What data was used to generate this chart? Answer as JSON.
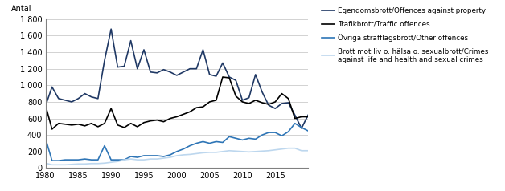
{
  "years": [
    1980,
    1981,
    1982,
    1983,
    1984,
    1985,
    1986,
    1987,
    1988,
    1989,
    1990,
    1991,
    1992,
    1993,
    1994,
    1995,
    1996,
    1997,
    1998,
    1999,
    2000,
    2001,
    2002,
    2003,
    2004,
    2005,
    2006,
    2007,
    2008,
    2009,
    2010,
    2011,
    2012,
    2013,
    2014,
    2015,
    2016,
    2017,
    2018,
    2019,
    2020
  ],
  "egendom": [
    750,
    980,
    840,
    820,
    800,
    840,
    900,
    860,
    840,
    1300,
    1680,
    1220,
    1230,
    1540,
    1200,
    1430,
    1160,
    1150,
    1190,
    1160,
    1120,
    1160,
    1200,
    1200,
    1430,
    1130,
    1110,
    1270,
    1100,
    1060,
    820,
    850,
    1130,
    920,
    760,
    720,
    780,
    790,
    640,
    480,
    640
  ],
  "trafik": [
    760,
    470,
    540,
    530,
    520,
    530,
    510,
    540,
    500,
    540,
    720,
    520,
    490,
    540,
    500,
    550,
    570,
    580,
    560,
    600,
    620,
    650,
    680,
    730,
    740,
    800,
    820,
    1100,
    1090,
    870,
    800,
    780,
    820,
    790,
    770,
    800,
    900,
    840,
    600,
    620,
    620
  ],
  "ovriga": [
    360,
    90,
    90,
    100,
    100,
    100,
    110,
    100,
    100,
    270,
    100,
    100,
    100,
    140,
    130,
    150,
    150,
    150,
    140,
    160,
    200,
    230,
    270,
    300,
    320,
    300,
    320,
    310,
    380,
    360,
    340,
    360,
    350,
    400,
    430,
    430,
    390,
    440,
    540,
    490,
    450
  ],
  "brott_mot_liv": [
    60,
    40,
    40,
    40,
    45,
    50,
    50,
    55,
    55,
    60,
    70,
    80,
    100,
    110,
    100,
    100,
    110,
    110,
    120,
    130,
    150,
    160,
    165,
    175,
    185,
    190,
    190,
    200,
    210,
    205,
    200,
    195,
    200,
    205,
    210,
    220,
    230,
    240,
    240,
    210,
    210
  ],
  "color_egendom": "#1f3864",
  "color_trafik": "#000000",
  "color_ovriga": "#2e75b6",
  "color_brott": "#bdd7ee",
  "label_egendom": "Egendomsbrott/Offences against property",
  "label_trafik": "Trafikbrott/Traffic offences",
  "label_ovriga": "Övriga strafflagsbrott/Other offences",
  "label_brott": "Brott mot liv o. hälsa o. sexualbrott/Crimes\nagainst life and health and sexual crimes",
  "ylabel": "Antal",
  "ylim": [
    0,
    1800
  ],
  "yticks": [
    0,
    200,
    400,
    600,
    800,
    1000,
    1200,
    1400,
    1600,
    1800
  ],
  "ytick_labels": [
    "0",
    "200",
    "400",
    "600",
    "800",
    "1 000",
    "1 200",
    "1 400",
    "1 600",
    "1 800"
  ],
  "xlim": [
    1980,
    2020
  ],
  "xticks": [
    1980,
    1985,
    1990,
    1995,
    2000,
    2005,
    2010,
    2015
  ],
  "background_color": "#ffffff",
  "grid_color": "#c0c0c0",
  "linewidth": 1.2
}
